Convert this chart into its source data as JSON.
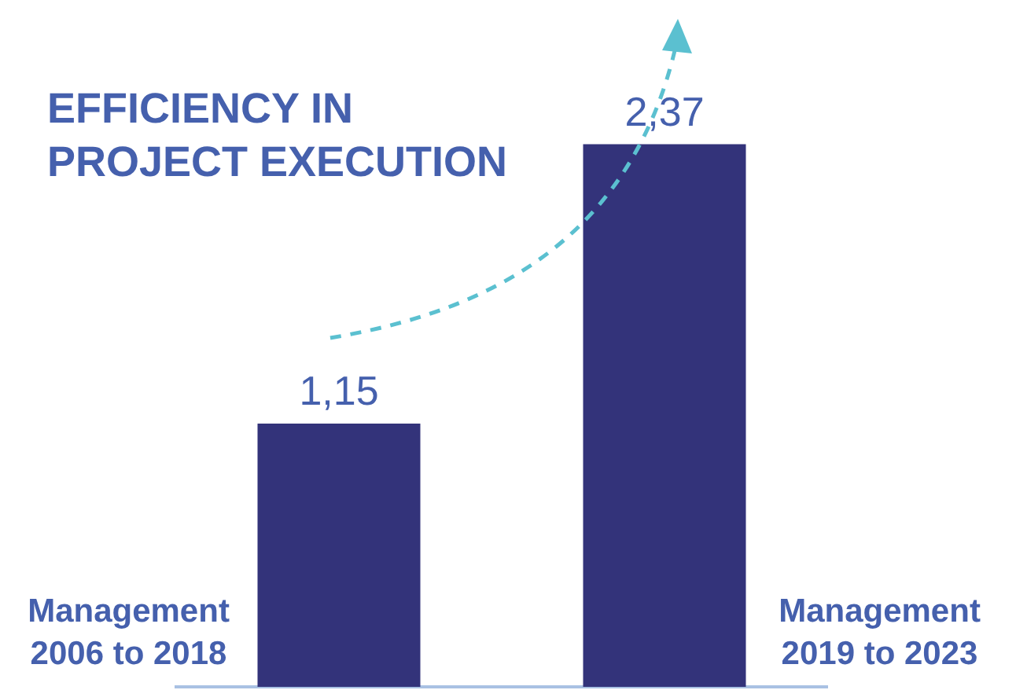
{
  "chart_data": {
    "type": "bar",
    "title": "EFFICIENCY IN\nPROJECT EXECUTION",
    "categories": [
      "Management\n2006 to 2018",
      "Management\n2019 to 2023"
    ],
    "values": [
      1.15,
      2.37
    ],
    "color": "#33337a",
    "value_labels": [
      "1,15",
      "2,37"
    ],
    "grid": false,
    "legend": false
  }
}
